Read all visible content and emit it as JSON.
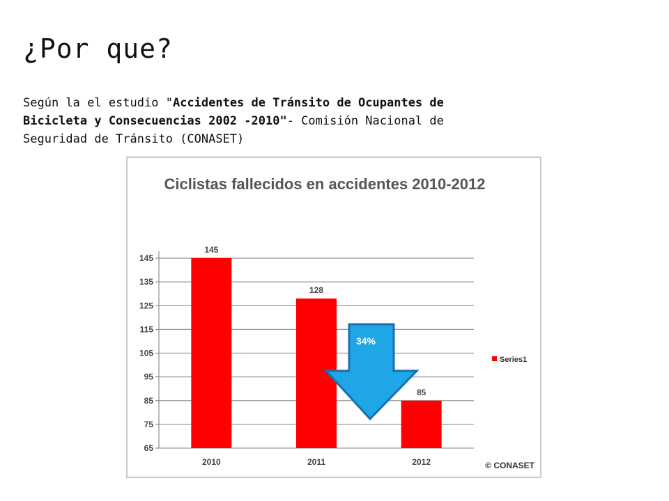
{
  "slide": {
    "title": "¿Por que?",
    "source_prefix": "Según la  el estudio \"",
    "source_bold": "Accidentes de Tránsito de Ocupantes de Bicicleta y Consecuencias 2002 -2010\"",
    "source_suffix": "- Comisión Nacional de Seguridad de Tránsito (CONASET)"
  },
  "chart_data": {
    "type": "bar",
    "title": "Ciclistas fallecidos en accidentes  2010-2012",
    "categories": [
      "2010",
      "2011",
      "2012"
    ],
    "series": [
      {
        "name": "Series1",
        "values": [
          145,
          128,
          85
        ],
        "color": "#ff0000"
      }
    ],
    "data_labels": [
      "145",
      "128",
      "85"
    ],
    "ylim": [
      65,
      145
    ],
    "yticks": [
      65,
      75,
      85,
      95,
      105,
      115,
      125,
      135,
      145
    ],
    "grid": true,
    "legend_position": "right",
    "annotation": {
      "text": "34%",
      "shape": "down-arrow",
      "color": "#1ea6e6"
    },
    "credit": "© CONASET"
  }
}
